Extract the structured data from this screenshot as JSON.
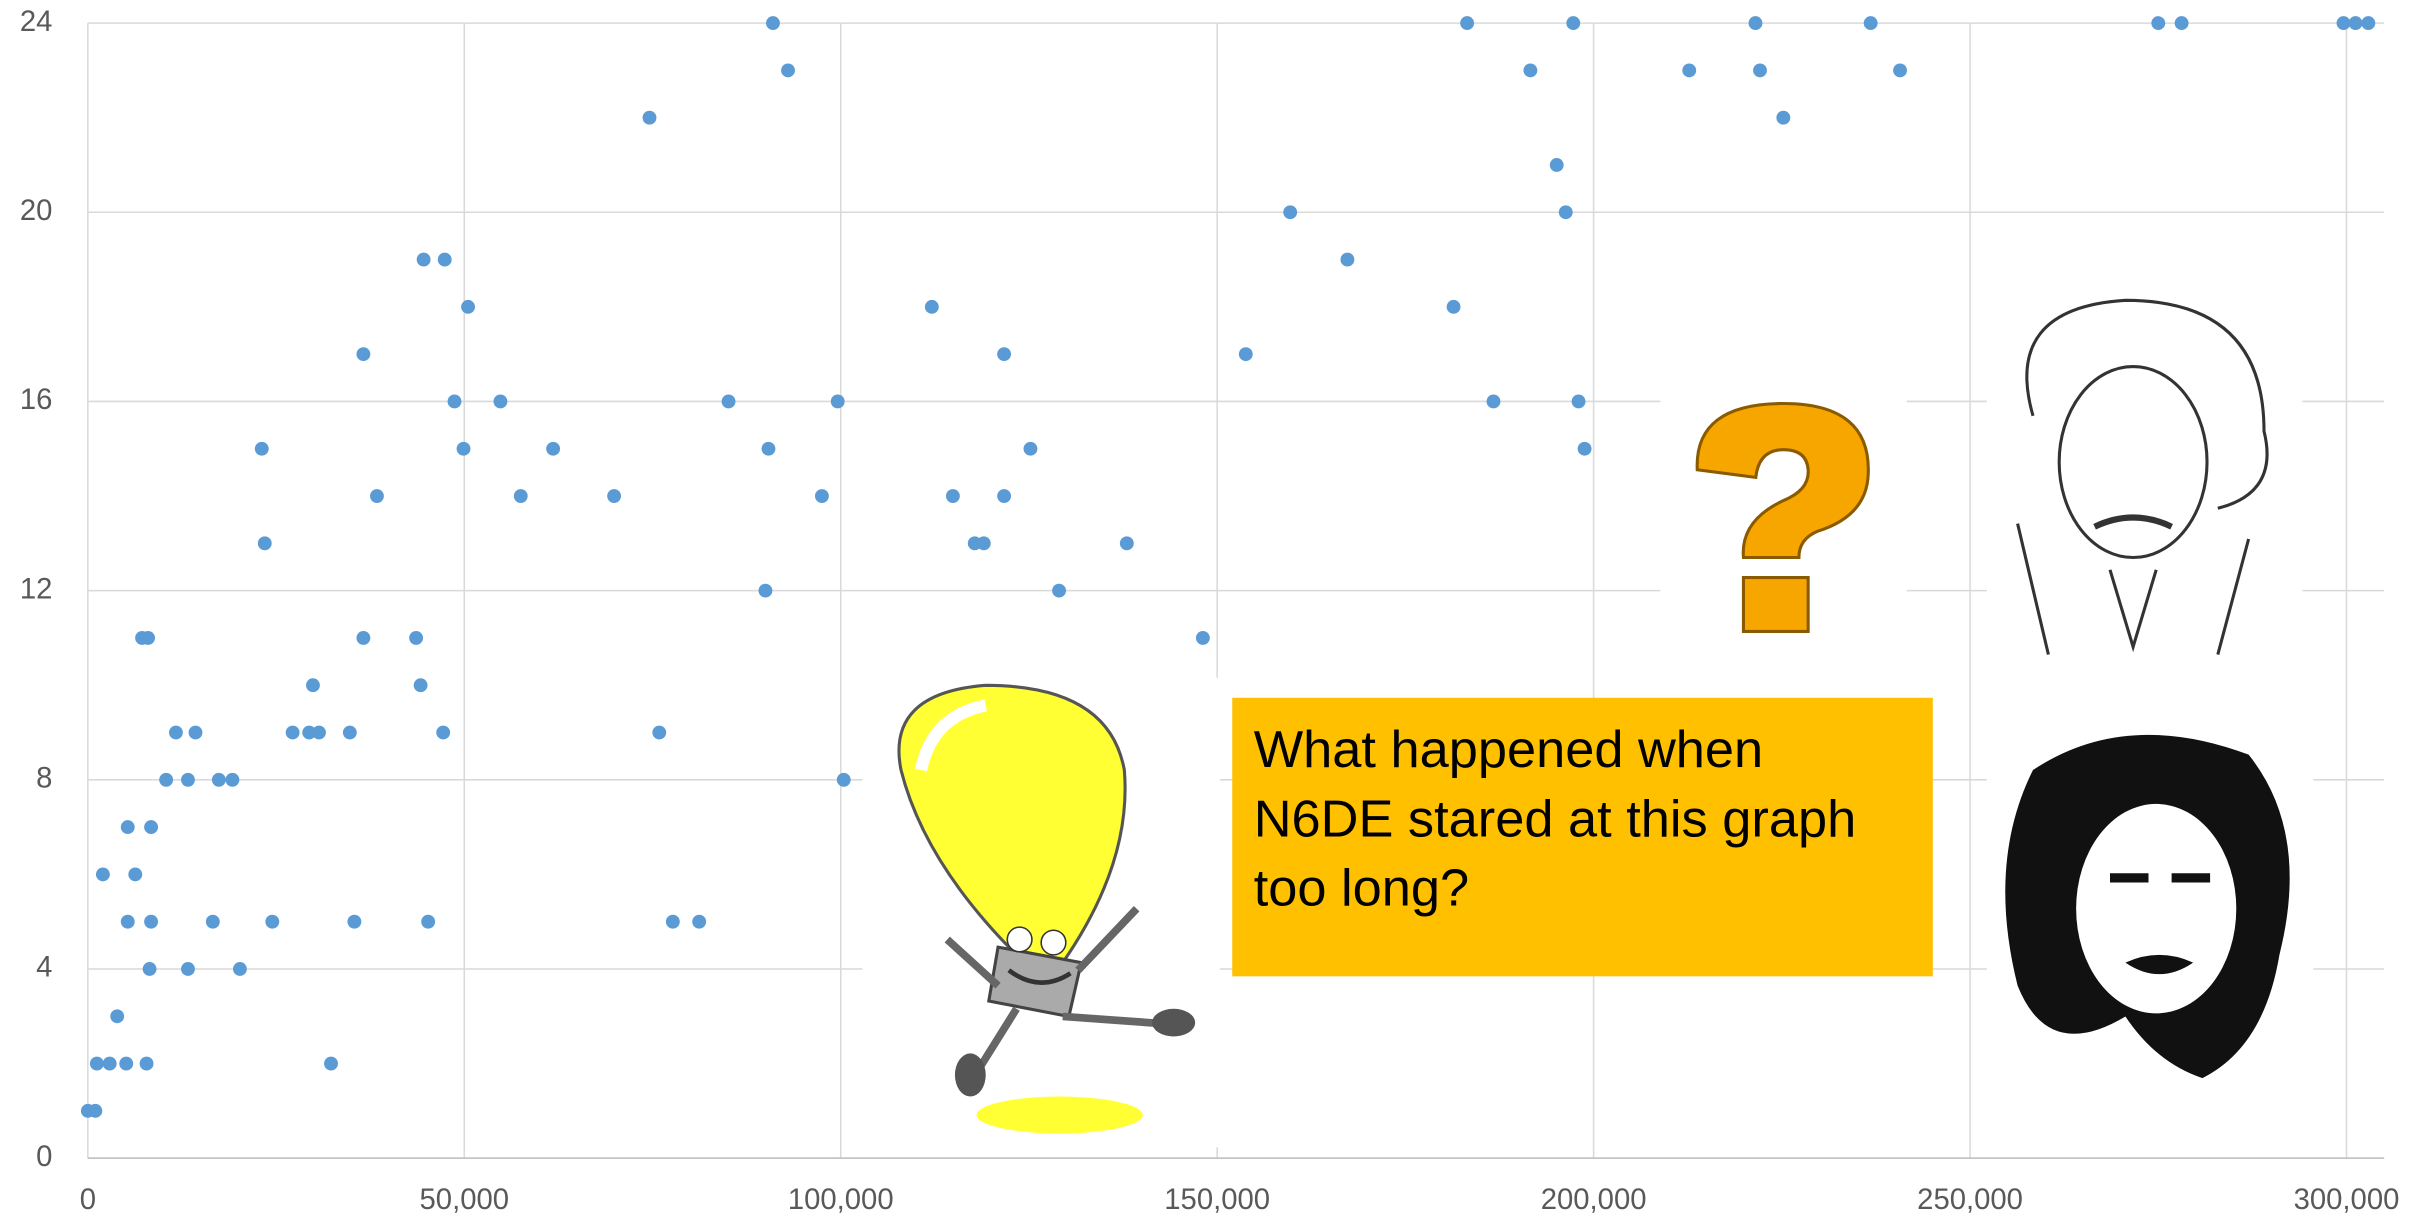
{
  "chart_data": {
    "type": "scatter",
    "annotation": "What happened when N6DE stared at this graph too long?",
    "color": "#5b9bd5",
    "grid": true,
    "xlim": [
      0,
      305000
    ],
    "xticks": [
      0,
      {
        "value": 50000,
        "label": "50,000"
      },
      {
        "value": 100000,
        "label": "100,000"
      },
      {
        "value": 150000,
        "label": "150,000"
      },
      {
        "value": 200000,
        "label": "200,000"
      },
      {
        "value": 250000,
        "label": "250,000"
      },
      {
        "value": 300000,
        "label": "300,000"
      }
    ],
    "ylim": [
      0,
      24
    ],
    "yticks": [
      0,
      4,
      8,
      12,
      16,
      20,
      24
    ],
    "x": [
      0,
      1000,
      1200,
      2000,
      2900,
      3900,
      5100,
      5300,
      5300,
      6300,
      7200,
      8000,
      7800,
      8200,
      8400,
      8400,
      10400,
      11700,
      13300,
      13300,
      14300,
      16600,
      17400,
      19200,
      20200,
      23100,
      23500,
      24500,
      27200,
      29400,
      29900,
      30700,
      32300,
      34800,
      35400,
      36600,
      36600,
      38400,
      43600,
      44200,
      44600,
      45200,
      47200,
      47400,
      48700,
      49900,
      50500,
      54800,
      57500,
      61800,
      69900,
      74600,
      75900,
      77700,
      81200,
      85100,
      90000,
      90400,
      91000,
      93000,
      97500,
      99600,
      100400,
      112100,
      114900,
      117800,
      119000,
      121700,
      121700,
      125200,
      129000,
      138000,
      148100,
      153800,
      159700,
      167300,
      181400,
      183200,
      186700,
      191600,
      195100,
      196300,
      197300,
      198000,
      198800,
      212700,
      221500,
      222100,
      225200,
      236800,
      240700,
      275000,
      278100,
      299600,
      301200,
      302900
    ],
    "values": [
      1,
      1,
      2,
      6,
      2,
      3,
      2,
      7,
      5,
      6,
      11,
      11,
      2,
      4,
      5,
      7,
      8,
      9,
      8,
      4,
      9,
      5,
      8,
      8,
      4,
      15,
      13,
      5,
      9,
      9,
      10,
      9,
      2,
      9,
      5,
      17,
      11,
      14,
      11,
      10,
      19,
      5,
      9,
      19,
      16,
      15,
      18,
      16,
      14,
      15,
      14,
      22,
      9,
      5,
      5,
      16,
      12,
      15,
      24,
      23,
      14,
      16,
      8,
      18,
      14,
      13,
      13,
      17,
      14,
      15,
      12,
      13,
      11,
      17,
      20,
      19,
      18,
      24,
      16,
      23,
      21,
      20,
      24,
      16,
      15,
      23,
      24,
      23,
      22,
      24,
      23,
      24,
      24,
      24,
      24,
      24
    ]
  }
}
